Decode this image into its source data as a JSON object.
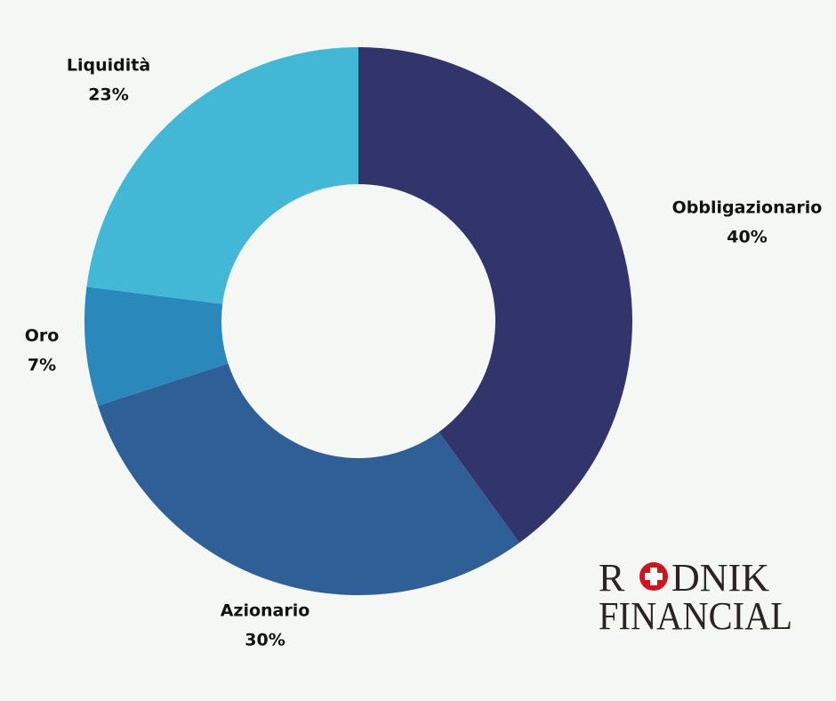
{
  "chart_data": {
    "type": "donut",
    "categories": [
      "Obbligazionario",
      "Azionario",
      "Oro",
      "Liquidità"
    ],
    "values": [
      40,
      30,
      7,
      23
    ],
    "value_labels": [
      "40%",
      "30%",
      "7%",
      "23%"
    ],
    "colors": [
      "#31356b",
      "#2e5f97",
      "#2b88bb",
      "#42b8d6"
    ]
  },
  "logo": {
    "top_start": "R",
    "top_end": "DNIK",
    "bottom": "FINANCIAL"
  }
}
